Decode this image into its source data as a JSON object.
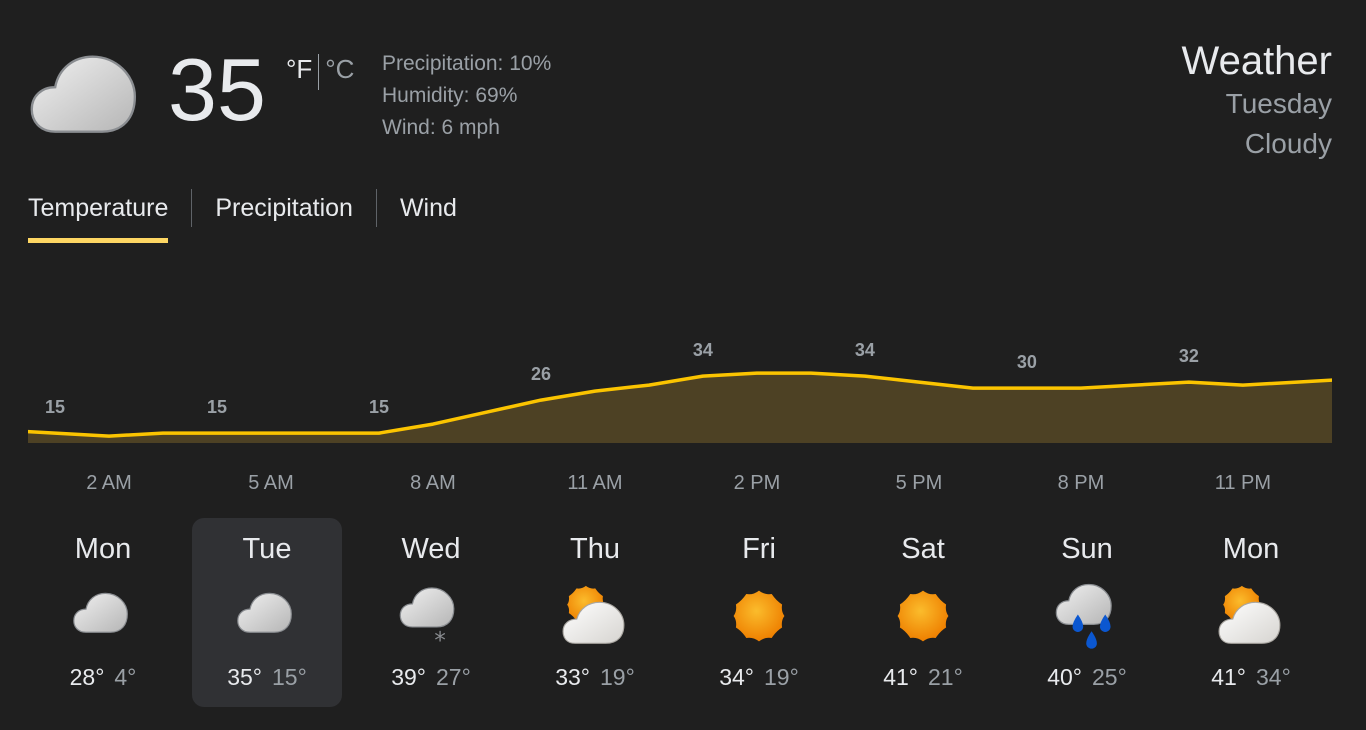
{
  "current": {
    "icon": "cloudy-icon",
    "temperature": "35",
    "unit_f": "°F",
    "unit_c": "°C",
    "precipitation": "Precipitation: 10%",
    "humidity": "Humidity: 69%",
    "wind": "Wind: 6 mph"
  },
  "header": {
    "title": "Weather",
    "day": "Tuesday",
    "condition": "Cloudy"
  },
  "tabs": [
    {
      "label": "Temperature",
      "active": true
    },
    {
      "label": "Precipitation",
      "active": false
    },
    {
      "label": "Wind",
      "active": false
    }
  ],
  "colors": {
    "accent": "#fdd663",
    "line": "#fbc400",
    "fill": "#4d4124",
    "background": "#1f1f1f",
    "selected_card": "#303134"
  },
  "chart_data": {
    "type": "area",
    "x_hours": [
      0,
      1,
      2,
      3,
      4,
      5,
      6,
      7,
      8,
      9,
      10,
      11,
      12,
      13,
      14,
      15,
      16,
      17,
      18,
      19,
      20,
      21,
      22,
      23,
      24,
      25
    ],
    "values": [
      16,
      15,
      14,
      15,
      15,
      15,
      15,
      15,
      18,
      22,
      26,
      29,
      31,
      34,
      35,
      35,
      34,
      32,
      30,
      30,
      30,
      31,
      32,
      31,
      32,
      33
    ],
    "value_labels": [
      {
        "hour": 1,
        "text": "15"
      },
      {
        "hour": 4,
        "text": "15"
      },
      {
        "hour": 7,
        "text": "15"
      },
      {
        "hour": 10,
        "text": "26"
      },
      {
        "hour": 13,
        "text": "34"
      },
      {
        "hour": 16,
        "text": "34"
      },
      {
        "hour": 19,
        "text": "30"
      },
      {
        "hour": 22,
        "text": "32"
      }
    ],
    "tick_labels": [
      {
        "hour": 2,
        "text": "2 AM"
      },
      {
        "hour": 5,
        "text": "5 AM"
      },
      {
        "hour": 8,
        "text": "8 AM"
      },
      {
        "hour": 11,
        "text": "11 AM"
      },
      {
        "hour": 14,
        "text": "2 PM"
      },
      {
        "hour": 17,
        "text": "5 PM"
      },
      {
        "hour": 20,
        "text": "8 PM"
      },
      {
        "hour": 23,
        "text": "11 PM"
      }
    ],
    "xlim": [
      0.5,
      24.65
    ],
    "ylim": [
      11.7,
      76
    ],
    "grid": false
  },
  "forecast": [
    {
      "day": "Mon",
      "icon": "cloudy",
      "high": "28°",
      "low": "4°",
      "selected": false
    },
    {
      "day": "Tue",
      "icon": "cloudy",
      "high": "35°",
      "low": "15°",
      "selected": true
    },
    {
      "day": "Wed",
      "icon": "snow-cloud",
      "high": "39°",
      "low": "27°",
      "selected": false
    },
    {
      "day": "Thu",
      "icon": "partly-cloudy",
      "high": "33°",
      "low": "19°",
      "selected": false
    },
    {
      "day": "Fri",
      "icon": "sunny",
      "high": "34°",
      "low": "19°",
      "selected": false
    },
    {
      "day": "Sat",
      "icon": "sunny",
      "high": "41°",
      "low": "21°",
      "selected": false
    },
    {
      "day": "Sun",
      "icon": "rain-cloud",
      "high": "40°",
      "low": "25°",
      "selected": false
    },
    {
      "day": "Mon",
      "icon": "partly-cloudy",
      "high": "41°",
      "low": "34°",
      "selected": false
    }
  ]
}
